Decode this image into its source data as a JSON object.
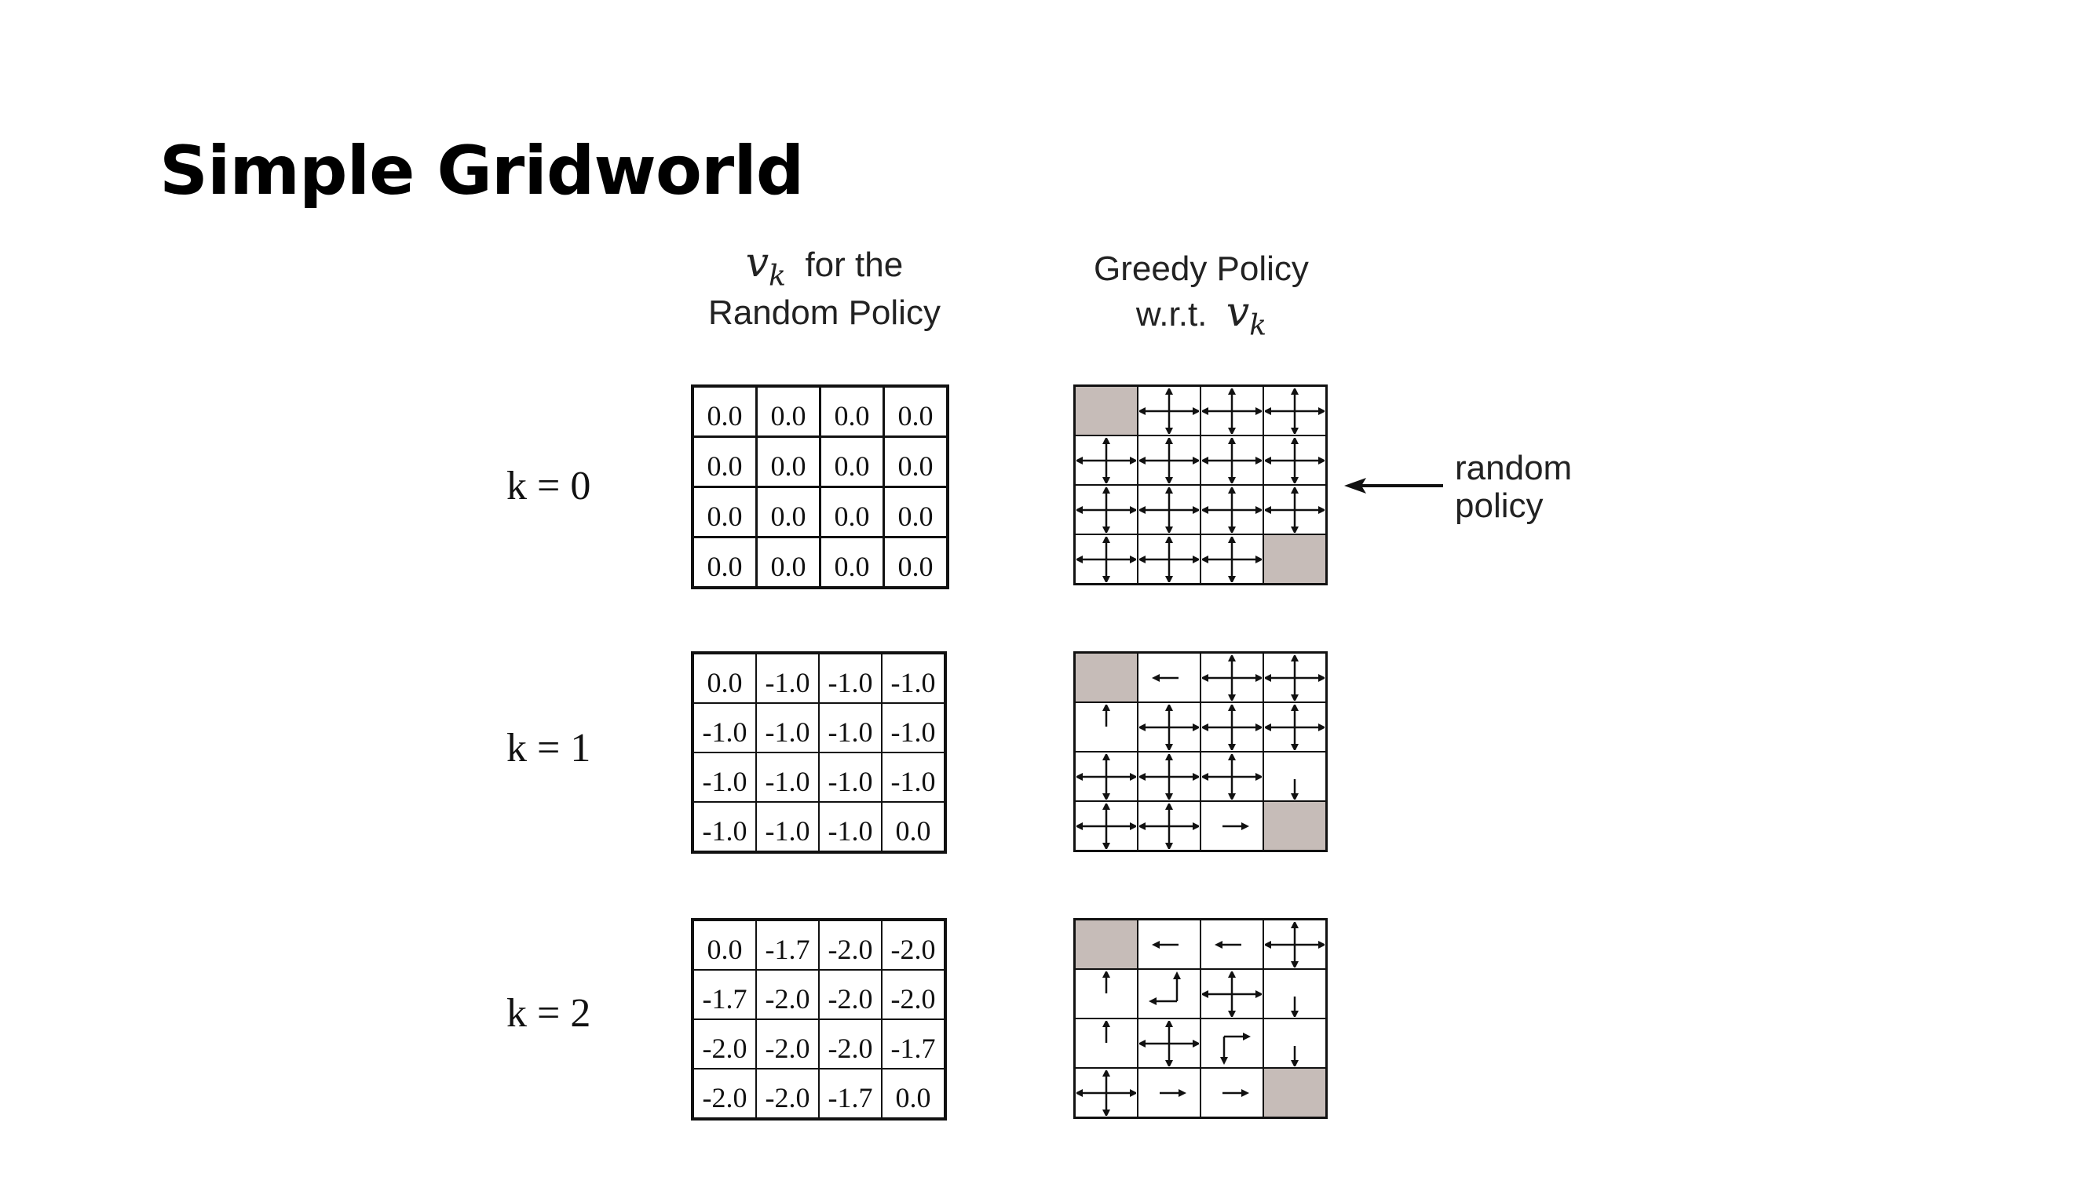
{
  "title": "Simple Gridworld",
  "value_header": {
    "symbol": "v",
    "subscript": "k",
    "line1": "for the",
    "line2": "Random Policy"
  },
  "policy_header": {
    "line1": "Greedy Policy",
    "line2": "w.r.t.",
    "symbol": "v",
    "subscript": "k"
  },
  "annotation": {
    "line1": "random",
    "line2": "policy"
  },
  "colors": {
    "terminal_fill": "#c6bcb8",
    "ink": "#111111"
  },
  "rows": [
    {
      "k_label": "k = 0",
      "values": [
        [
          "0.0",
          "0.0",
          "0.0",
          "0.0"
        ],
        [
          "0.0",
          "0.0",
          "0.0",
          "0.0"
        ],
        [
          "0.0",
          "0.0",
          "0.0",
          "0.0"
        ],
        [
          "0.0",
          "0.0",
          "0.0",
          "0.0"
        ]
      ],
      "policy": [
        [
          "T",
          "NSEW",
          "NSEW",
          "NSEW"
        ],
        [
          "NSEW",
          "NSEW",
          "NSEW",
          "NSEW"
        ],
        [
          "NSEW",
          "NSEW",
          "NSEW",
          "NSEW"
        ],
        [
          "NSEW",
          "NSEW",
          "NSEW",
          "T"
        ]
      ]
    },
    {
      "k_label": "k = 1",
      "values": [
        [
          "0.0",
          "-1.0",
          "-1.0",
          "-1.0"
        ],
        [
          "-1.0",
          "-1.0",
          "-1.0",
          "-1.0"
        ],
        [
          "-1.0",
          "-1.0",
          "-1.0",
          "-1.0"
        ],
        [
          "-1.0",
          "-1.0",
          "-1.0",
          "0.0"
        ]
      ],
      "policy": [
        [
          "T",
          "W",
          "NSEW",
          "NSEW"
        ],
        [
          "N",
          "NSEW",
          "NSEW",
          "NSEW"
        ],
        [
          "NSEW",
          "NSEW",
          "NSEW",
          "S"
        ],
        [
          "NSEW",
          "NSEW",
          "E",
          "T"
        ]
      ]
    },
    {
      "k_label": "k = 2",
      "values": [
        [
          "0.0",
          "-1.7",
          "-2.0",
          "-2.0"
        ],
        [
          "-1.7",
          "-2.0",
          "-2.0",
          "-2.0"
        ],
        [
          "-2.0",
          "-2.0",
          "-2.0",
          "-1.7"
        ],
        [
          "-2.0",
          "-2.0",
          "-1.7",
          "0.0"
        ]
      ],
      "policy": [
        [
          "T",
          "W",
          "W",
          "NSEW"
        ],
        [
          "N",
          "NW",
          "NSEW",
          "S"
        ],
        [
          "N",
          "NSEW",
          "SE",
          "S"
        ],
        [
          "NSEW",
          "E",
          "E",
          "T"
        ]
      ]
    }
  ]
}
